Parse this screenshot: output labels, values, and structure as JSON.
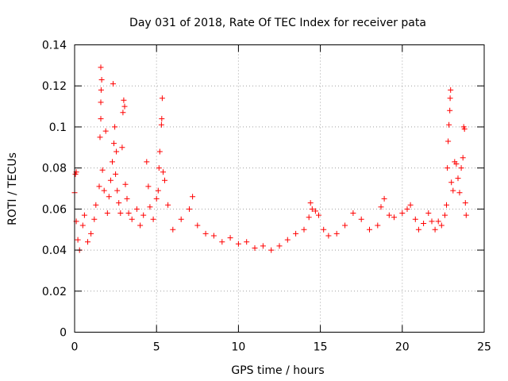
{
  "chart_data": {
    "type": "scatter",
    "title": "Day 031 of 2018, Rate Of TEC Index for receiver pata",
    "xlabel": "GPS time / hours",
    "ylabel": "ROTI / TECUs",
    "xlim": [
      0,
      25
    ],
    "ylim": [
      0,
      0.14
    ],
    "xticks": [
      0,
      5,
      10,
      15,
      20,
      25
    ],
    "xtick_labels": [
      "0",
      "5",
      "10",
      "15",
      "20",
      "25"
    ],
    "yticks": [
      0,
      0.02,
      0.04,
      0.06,
      0.08,
      0.1,
      0.12,
      0.14
    ],
    "ytick_labels": [
      "0",
      "0.02",
      "0.04",
      "0.06",
      "0.08",
      "0.1",
      "0.12",
      "0.14"
    ],
    "grid": true,
    "marker": "+",
    "series": [
      {
        "name": "ROTI",
        "color": "#ff0000",
        "points": [
          [
            0.0,
            0.068
          ],
          [
            0.05,
            0.077
          ],
          [
            0.1,
            0.078
          ],
          [
            0.1,
            0.054
          ],
          [
            0.2,
            0.045
          ],
          [
            0.3,
            0.04
          ],
          [
            0.5,
            0.052
          ],
          [
            0.6,
            0.057
          ],
          [
            0.8,
            0.044
          ],
          [
            1.0,
            0.048
          ],
          [
            1.2,
            0.055
          ],
          [
            1.3,
            0.062
          ],
          [
            1.5,
            0.071
          ],
          [
            1.55,
            0.095
          ],
          [
            1.6,
            0.104
          ],
          [
            1.6,
            0.112
          ],
          [
            1.62,
            0.118
          ],
          [
            1.65,
            0.123
          ],
          [
            1.6,
            0.129
          ],
          [
            1.7,
            0.079
          ],
          [
            1.8,
            0.069
          ],
          [
            1.9,
            0.098
          ],
          [
            2.0,
            0.058
          ],
          [
            2.1,
            0.066
          ],
          [
            2.2,
            0.074
          ],
          [
            2.3,
            0.083
          ],
          [
            2.35,
            0.121
          ],
          [
            2.4,
            0.092
          ],
          [
            2.45,
            0.1
          ],
          [
            2.5,
            0.077
          ],
          [
            2.55,
            0.088
          ],
          [
            2.6,
            0.069
          ],
          [
            2.7,
            0.063
          ],
          [
            2.8,
            0.058
          ],
          [
            2.9,
            0.09
          ],
          [
            2.95,
            0.107
          ],
          [
            3.0,
            0.113
          ],
          [
            3.05,
            0.11
          ],
          [
            3.1,
            0.072
          ],
          [
            3.2,
            0.065
          ],
          [
            3.3,
            0.058
          ],
          [
            3.5,
            0.055
          ],
          [
            3.8,
            0.06
          ],
          [
            4.0,
            0.052
          ],
          [
            4.2,
            0.057
          ],
          [
            4.4,
            0.083
          ],
          [
            4.5,
            0.071
          ],
          [
            4.6,
            0.061
          ],
          [
            4.8,
            0.055
          ],
          [
            5.0,
            0.065
          ],
          [
            5.1,
            0.069
          ],
          [
            5.15,
            0.08
          ],
          [
            5.2,
            0.088
          ],
          [
            5.3,
            0.101
          ],
          [
            5.32,
            0.104
          ],
          [
            5.35,
            0.114
          ],
          [
            5.4,
            0.078
          ],
          [
            5.5,
            0.074
          ],
          [
            5.7,
            0.062
          ],
          [
            6.0,
            0.05
          ],
          [
            6.5,
            0.055
          ],
          [
            7.0,
            0.06
          ],
          [
            7.2,
            0.066
          ],
          [
            7.5,
            0.052
          ],
          [
            8.0,
            0.048
          ],
          [
            8.5,
            0.047
          ],
          [
            9.0,
            0.044
          ],
          [
            9.5,
            0.046
          ],
          [
            10.0,
            0.043
          ],
          [
            10.5,
            0.044
          ],
          [
            11.0,
            0.041
          ],
          [
            11.5,
            0.042
          ],
          [
            12.0,
            0.04
          ],
          [
            12.5,
            0.042
          ],
          [
            13.0,
            0.045
          ],
          [
            13.5,
            0.048
          ],
          [
            14.0,
            0.05
          ],
          [
            14.3,
            0.056
          ],
          [
            14.4,
            0.063
          ],
          [
            14.5,
            0.06
          ],
          [
            14.7,
            0.059
          ],
          [
            14.9,
            0.057
          ],
          [
            15.2,
            0.05
          ],
          [
            15.5,
            0.047
          ],
          [
            16.0,
            0.048
          ],
          [
            16.5,
            0.052
          ],
          [
            17.0,
            0.058
          ],
          [
            17.5,
            0.055
          ],
          [
            18.0,
            0.05
          ],
          [
            18.5,
            0.052
          ],
          [
            18.7,
            0.061
          ],
          [
            18.9,
            0.065
          ],
          [
            19.2,
            0.057
          ],
          [
            19.5,
            0.056
          ],
          [
            20.0,
            0.058
          ],
          [
            20.3,
            0.06
          ],
          [
            20.5,
            0.062
          ],
          [
            20.8,
            0.055
          ],
          [
            21.0,
            0.05
          ],
          [
            21.3,
            0.053
          ],
          [
            21.6,
            0.058
          ],
          [
            21.8,
            0.054
          ],
          [
            22.0,
            0.05
          ],
          [
            22.2,
            0.054
          ],
          [
            22.4,
            0.052
          ],
          [
            22.6,
            0.057
          ],
          [
            22.7,
            0.062
          ],
          [
            22.75,
            0.08
          ],
          [
            22.8,
            0.093
          ],
          [
            22.85,
            0.101
          ],
          [
            22.9,
            0.108
          ],
          [
            22.92,
            0.114
          ],
          [
            22.95,
            0.118
          ],
          [
            23.0,
            0.073
          ],
          [
            23.1,
            0.069
          ],
          [
            23.2,
            0.083
          ],
          [
            23.3,
            0.082
          ],
          [
            23.4,
            0.075
          ],
          [
            23.5,
            0.068
          ],
          [
            23.6,
            0.08
          ],
          [
            23.7,
            0.085
          ],
          [
            23.75,
            0.1
          ],
          [
            23.8,
            0.099
          ],
          [
            23.85,
            0.063
          ],
          [
            23.9,
            0.057
          ]
        ]
      }
    ]
  }
}
